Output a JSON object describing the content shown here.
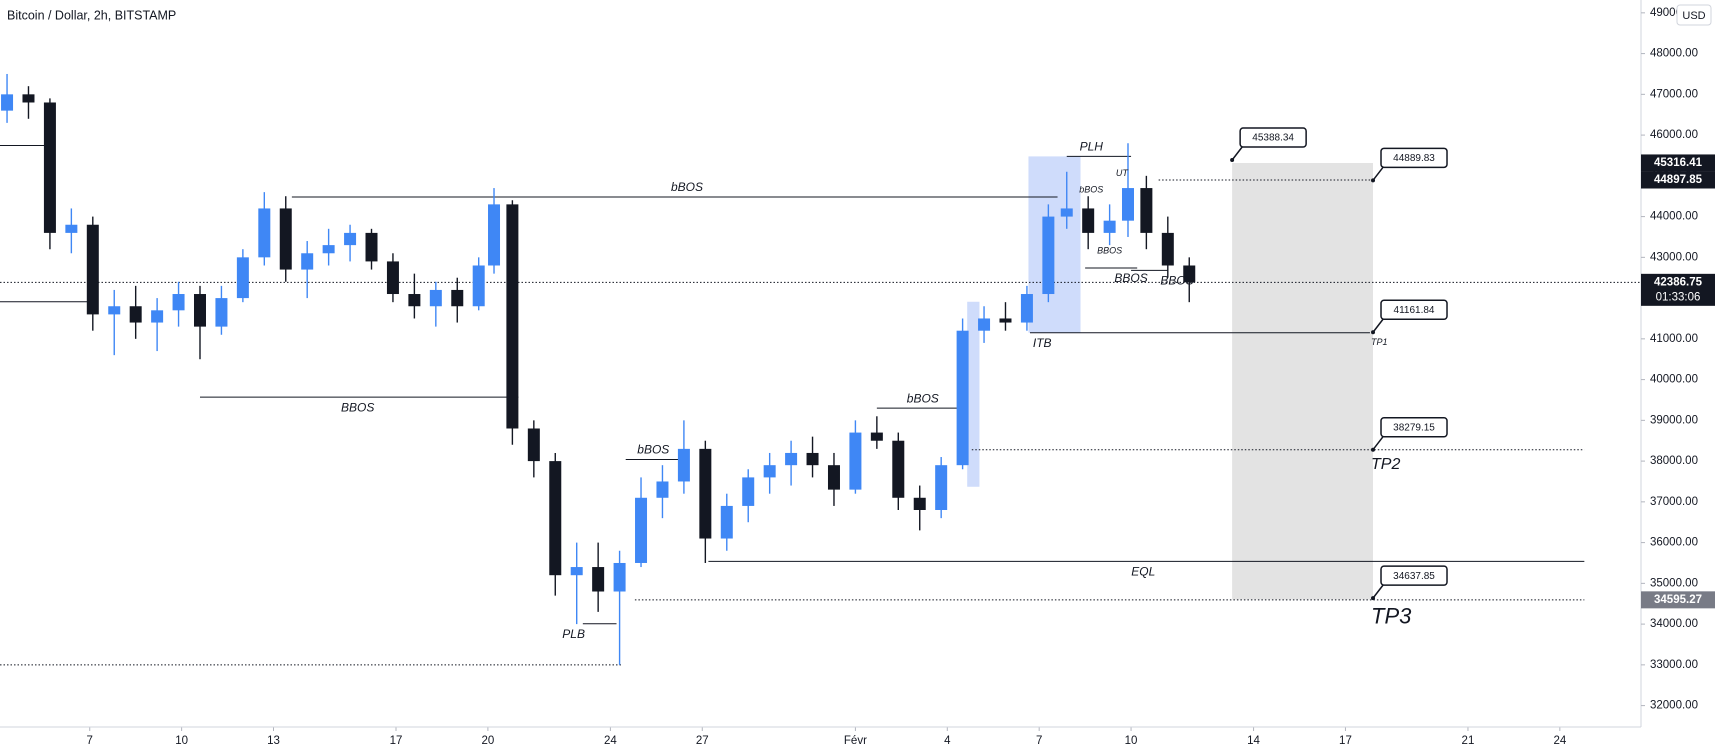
{
  "chart_data": {
    "type": "candlestick",
    "title": "Bitcoin / Dollar, 2h, BITSTAMP",
    "currency": "USD",
    "up_color": "#3f87f5",
    "down_color": "#131722",
    "x": [
      4.3,
      5.0,
      5.7,
      6.4,
      7.1,
      7.8,
      8.5,
      9.2,
      9.9,
      10.6,
      11.3,
      12.0,
      12.7,
      13.4,
      14.1,
      14.8,
      15.5,
      16.2,
      16.9,
      17.6,
      18.3,
      19.0,
      19.7,
      20.2,
      20.8,
      21.5,
      22.2,
      22.9,
      23.6,
      24.3,
      25.0,
      25.7,
      26.4,
      27.1,
      27.8,
      28.5,
      29.2,
      29.9,
      30.6,
      31.3,
      32.0,
      32.7,
      33.4,
      34.1,
      34.8,
      35.5,
      36.2,
      36.9,
      37.6,
      38.3,
      38.9,
      39.6,
      40.3,
      40.9,
      41.5,
      42.2,
      42.9
    ],
    "open": [
      46600,
      47000,
      46800,
      43600,
      43800,
      41600,
      41800,
      41400,
      41700,
      42100,
      41300,
      42000,
      43000,
      44200,
      42700,
      43100,
      43300,
      43600,
      42900,
      42100,
      41800,
      42200,
      41800,
      42800,
      44300,
      38800,
      38000,
      35200,
      35400,
      34800,
      35500,
      37100,
      37500,
      38300,
      36100,
      36900,
      37600,
      37900,
      38200,
      37900,
      37300,
      38700,
      38500,
      37100,
      36800,
      37900,
      41200,
      41500,
      41400,
      42100,
      44000,
      44200,
      43600,
      43900,
      44700,
      43600,
      42800
    ],
    "high": [
      47500,
      47200,
      46900,
      44200,
      44000,
      42200,
      42300,
      42000,
      42400,
      42300,
      42300,
      43200,
      44600,
      44500,
      43400,
      43700,
      43800,
      43700,
      43100,
      42600,
      42400,
      42500,
      43000,
      44700,
      44400,
      39000,
      38200,
      36000,
      36000,
      35800,
      37600,
      37900,
      39000,
      38500,
      37200,
      37800,
      38200,
      38500,
      38600,
      38200,
      39000,
      39100,
      38700,
      37400,
      38100,
      41500,
      41800,
      41900,
      42300,
      44300,
      45100,
      44500,
      44300,
      45800,
      45000,
      44000,
      43000
    ],
    "low": [
      46300,
      46400,
      43200,
      43100,
      41200,
      40600,
      41000,
      40700,
      41300,
      40500,
      41100,
      41900,
      42800,
      42400,
      42000,
      42800,
      42900,
      42700,
      41900,
      41500,
      41300,
      41400,
      41700,
      42600,
      38400,
      37600,
      34700,
      34000,
      34300,
      33000,
      35400,
      36600,
      37200,
      35500,
      35800,
      36500,
      37200,
      37400,
      37600,
      36900,
      37200,
      38300,
      36800,
      36300,
      36600,
      37800,
      40900,
      41200,
      41200,
      41900,
      43700,
      43200,
      43300,
      43500,
      43200,
      42500,
      41900
    ],
    "close": [
      47000,
      46800,
      43600,
      43800,
      41600,
      41800,
      41400,
      41700,
      42100,
      41300,
      42000,
      43000,
      44200,
      42700,
      43100,
      43300,
      43600,
      42900,
      42100,
      41800,
      42200,
      41800,
      42800,
      44300,
      38800,
      38000,
      35200,
      35400,
      34800,
      35500,
      37100,
      37500,
      38300,
      36100,
      36900,
      37600,
      37900,
      38200,
      37900,
      37300,
      38700,
      38500,
      37100,
      36800,
      37900,
      41200,
      41500,
      41400,
      42100,
      44000,
      44200,
      43600,
      43900,
      44700,
      43600,
      42800,
      42387
    ],
    "xlim": [
      4.07,
      57.65
    ],
    "xticks": [
      7,
      10,
      13,
      17,
      20,
      24,
      27,
      {
        "value": 32,
        "label": "Févr"
      },
      {
        "value": 35,
        "label": "4"
      },
      {
        "value": 38,
        "label": "7"
      },
      {
        "value": 41,
        "label": "10"
      },
      {
        "value": 45,
        "label": "14"
      },
      {
        "value": 48,
        "label": "17"
      },
      {
        "value": 52,
        "label": "21"
      },
      {
        "value": 55,
        "label": "24"
      }
    ],
    "ylim": [
      31475,
      49315
    ],
    "yticks": [
      {
        "value": 32000,
        "label": "32000.00"
      },
      {
        "value": 33000,
        "label": "33000.00"
      },
      {
        "value": 34000,
        "label": "34000.00"
      },
      {
        "value": 35000,
        "label": "35000.00"
      },
      {
        "value": 36000,
        "label": "36000.00"
      },
      {
        "value": 37000,
        "label": "37000.00"
      },
      {
        "value": 38000,
        "label": "38000.00"
      },
      {
        "value": 39000,
        "label": "39000.00"
      },
      {
        "value": 40000,
        "label": "40000.00"
      },
      {
        "value": 41000,
        "label": "41000.00"
      },
      {
        "value": 42000,
        "label": "42000.00"
      },
      {
        "value": 43000,
        "label": "43000.00"
      },
      {
        "value": 44000,
        "label": "44000.00"
      },
      {
        "value": 45000,
        "label": "45000.00"
      },
      {
        "value": 46000,
        "label": "46000.00"
      },
      {
        "value": 47000,
        "label": "47000.00"
      },
      {
        "value": 48000,
        "label": "48000.00"
      },
      {
        "value": 49000,
        "label": "49000.00"
      }
    ],
    "zones": [
      {
        "from": 44.3,
        "to": 48.9,
        "low": 34605,
        "high": 45315,
        "color": "#e3e3e3"
      },
      {
        "from": 37.65,
        "to": 39.35,
        "low": 41150,
        "high": 45477,
        "color": "#cfdcfb"
      },
      {
        "from": 35.65,
        "to": 36.05,
        "low": 37370,
        "high": 41910,
        "color": "#cfdcfb"
      }
    ],
    "price_lines": [
      {
        "price": 42386.75,
        "from": 4.07,
        "to": 57.65,
        "style": "dotted"
      },
      {
        "price": 33000,
        "from": 4.07,
        "to": 24.4,
        "style": "dotted"
      },
      {
        "price": 45745,
        "from": 4.07,
        "to": 5.7,
        "style": "solid"
      },
      {
        "price": 41910,
        "from": 4.07,
        "to": 7.1,
        "style": "solid"
      },
      {
        "price": 34595.27,
        "from": 24.8,
        "to": 55.8,
        "style": "dotted"
      },
      {
        "price": 38279.15,
        "from": 35.8,
        "to": 55.8,
        "style": "dotted"
      },
      {
        "price": 44897.85,
        "from": 41.9,
        "to": 48.9,
        "style": "dotted"
      }
    ],
    "levels": [
      {
        "label": "bBOS",
        "price": 44480,
        "from": 13.6,
        "to": 38.6,
        "label_at": 26.5,
        "side": "above"
      },
      {
        "label": "BBOS",
        "price": 39570,
        "from": 10.6,
        "to": 21.0,
        "label_at": 15.75,
        "side": "below"
      },
      {
        "label": "bBOS",
        "price": 38040,
        "from": 24.5,
        "to": 26.5,
        "label_at": 25.4,
        "side": "above"
      },
      {
        "label": "bBOS",
        "price": 39300,
        "from": 32.7,
        "to": 35.6,
        "label_at": 34.2,
        "side": "above"
      },
      {
        "label": "EQL",
        "price": 35540,
        "from": 27.2,
        "to": 55.8,
        "label_at": 41.4,
        "side": "below"
      },
      {
        "label": "ITB",
        "price": 41150,
        "from": 37.7,
        "to": 48.8,
        "label_at": 38.1,
        "side": "below"
      },
      {
        "label": "PLH",
        "price": 45477,
        "from": 38.9,
        "to": 41.0,
        "label_at": 39.7,
        "side": "above"
      },
      {
        "label": "PLB",
        "price": 34010,
        "from": 23.1,
        "to": 24.2,
        "label_at": 22.8,
        "side": "below"
      },
      {
        "label": "BBOS",
        "price": 42740,
        "from": 39.5,
        "to": 41.2,
        "label_at": 41.0,
        "side": "below"
      },
      {
        "label": "BBOS",
        "price": 42680,
        "from": 41.0,
        "to": 42.2,
        "label_at": 42.5,
        "side": "below"
      }
    ],
    "notes": [
      {
        "text": "bBOS",
        "x": 39.7,
        "y": 44645
      },
      {
        "text": "UT",
        "x": 40.7,
        "y": 45050
      },
      {
        "text": "BBOS",
        "x": 40.3,
        "y": 43150
      }
    ],
    "targets": [
      {
        "value": 45388.34,
        "at": 44.3
      },
      {
        "value": 44889.83,
        "at": 48.9
      },
      {
        "value": 41161.84,
        "at": 48.9,
        "tp": "TP1"
      },
      {
        "value": 38279.15,
        "at": 48.9,
        "tp": "TP2"
      },
      {
        "value": 34637.85,
        "at": 48.9,
        "tp": "TP3"
      }
    ],
    "price_tags": [
      {
        "value": 45316.41,
        "bg": "#131722"
      },
      {
        "value": 44897.85,
        "bg": "#131722"
      },
      {
        "value": 42386.75,
        "bg": "#131722",
        "countdown": "01:33:06"
      },
      {
        "value": 34595.27,
        "bg": "#787b86"
      }
    ]
  }
}
